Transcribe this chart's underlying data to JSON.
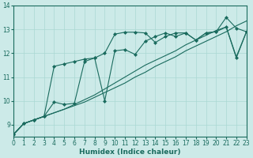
{
  "xlabel": "Humidex (Indice chaleur)",
  "xlim": [
    0,
    23
  ],
  "ylim": [
    8.5,
    14.0
  ],
  "yticks": [
    9,
    10,
    11,
    12,
    13,
    14
  ],
  "xticks": [
    0,
    1,
    2,
    3,
    4,
    5,
    6,
    7,
    8,
    9,
    10,
    11,
    12,
    13,
    14,
    15,
    16,
    17,
    18,
    19,
    20,
    21,
    22,
    23
  ],
  "background_color": "#cceae8",
  "line_color": "#1a6b5e",
  "grid_color": "#aad8d3",
  "series": [
    {
      "x": [
        0,
        1,
        2,
        3,
        4,
        5,
        6,
        7,
        8,
        9,
        10,
        11,
        12,
        13,
        14,
        15,
        16,
        17,
        18,
        19,
        20,
        21,
        22,
        23
      ],
      "y": [
        8.6,
        9.05,
        9.2,
        9.35,
        9.5,
        9.65,
        9.8,
        9.95,
        10.15,
        10.35,
        10.55,
        10.75,
        11.0,
        11.2,
        11.45,
        11.65,
        11.85,
        12.1,
        12.3,
        12.5,
        12.7,
        12.9,
        13.15,
        13.35
      ],
      "marker": false,
      "linewidth": 0.8
    },
    {
      "x": [
        0,
        1,
        2,
        3,
        4,
        5,
        6,
        7,
        8,
        9,
        10,
        11,
        12,
        13,
        14,
        15,
        16,
        17,
        18,
        19,
        20,
        21,
        22,
        23
      ],
      "y": [
        8.6,
        9.05,
        9.2,
        9.35,
        9.5,
        9.65,
        9.85,
        10.05,
        10.25,
        10.5,
        10.75,
        11.0,
        11.25,
        11.5,
        11.7,
        11.9,
        12.1,
        12.35,
        12.55,
        12.75,
        12.95,
        13.1,
        11.85,
        12.9
      ],
      "marker": false,
      "linewidth": 0.8
    },
    {
      "x": [
        0,
        1,
        2,
        3,
        4,
        5,
        6,
        7,
        8,
        9,
        10,
        11,
        12,
        13,
        14,
        15,
        16,
        17,
        18,
        19,
        20,
        21,
        22,
        23
      ],
      "y": [
        8.6,
        9.05,
        9.2,
        9.35,
        11.45,
        11.55,
        11.65,
        11.75,
        11.8,
        12.0,
        12.8,
        12.88,
        12.88,
        12.85,
        12.45,
        12.7,
        12.85,
        12.85,
        12.55,
        12.85,
        12.9,
        13.5,
        13.05,
        12.9
      ],
      "marker": true,
      "linewidth": 0.8
    },
    {
      "x": [
        0,
        1,
        2,
        3,
        4,
        5,
        6,
        7,
        8,
        9,
        10,
        11,
        12,
        13,
        14,
        15,
        16,
        17,
        18,
        19,
        20,
        21,
        22,
        23
      ],
      "y": [
        8.6,
        9.05,
        9.2,
        9.35,
        9.95,
        9.85,
        9.9,
        11.65,
        11.8,
        10.0,
        12.1,
        12.15,
        11.95,
        12.5,
        12.7,
        12.85,
        12.7,
        12.85,
        12.55,
        12.85,
        12.9,
        13.1,
        11.8,
        12.9
      ],
      "marker": true,
      "linewidth": 0.8
    }
  ]
}
